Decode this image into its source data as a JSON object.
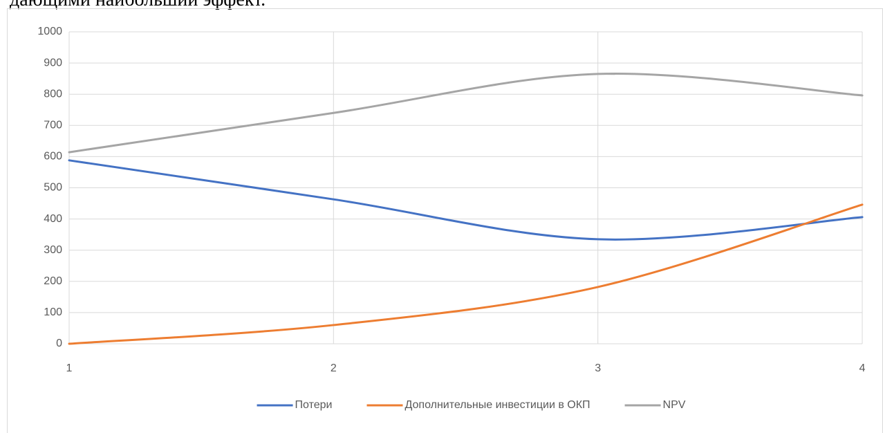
{
  "header_text": "дающими наибольший эффект.",
  "chart_data": {
    "type": "line",
    "x": [
      1,
      2,
      3,
      4
    ],
    "xlim": [
      1,
      4
    ],
    "xticks": [
      1,
      2,
      3,
      4
    ],
    "ylim": [
      0,
      1000
    ],
    "yticks": [
      0,
      100,
      200,
      300,
      400,
      500,
      600,
      700,
      800,
      900,
      1000
    ],
    "grid": true,
    "smooth": true,
    "legend": "bottom",
    "series": [
      {
        "name": "Потери",
        "color": "#4472c4",
        "values": [
          588,
          463,
          335,
          406
        ]
      },
      {
        "name": "Дополнительные инвестиции в ОКП",
        "color": "#ed7d31",
        "values": [
          0,
          60,
          182,
          446
        ]
      },
      {
        "name": "NPV",
        "color": "#a5a5a5",
        "values": [
          614,
          740,
          865,
          796
        ]
      }
    ]
  }
}
